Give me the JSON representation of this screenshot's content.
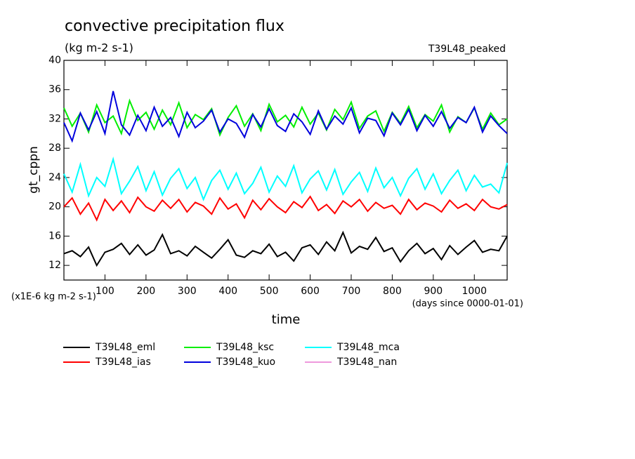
{
  "chart_data": {
    "type": "line",
    "title": "convective precipitation flux",
    "subtitle": "(kg m-2 s-1)",
    "run_label": "T39L48_peaked",
    "y_label": "gt_cppn",
    "y_unit_label": "(x1E-6 kg m-2 s-1)",
    "x_label": "time",
    "x_unit_label": "(days since 0000-01-01)",
    "xlim": [
      0,
      1080
    ],
    "ylim": [
      10,
      40
    ],
    "xticks": [
      100,
      200,
      300,
      400,
      500,
      600,
      700,
      800,
      900,
      1000
    ],
    "yticks": [
      12,
      16,
      20,
      24,
      28,
      32,
      36,
      40
    ],
    "x": [
      0,
      20,
      40,
      60,
      80,
      100,
      120,
      140,
      160,
      180,
      200,
      220,
      240,
      260,
      280,
      300,
      320,
      340,
      360,
      380,
      400,
      420,
      440,
      460,
      480,
      500,
      520,
      540,
      560,
      580,
      600,
      620,
      640,
      660,
      680,
      700,
      720,
      740,
      760,
      780,
      800,
      820,
      840,
      860,
      880,
      900,
      920,
      940,
      960,
      980,
      1000,
      1020,
      1040,
      1060,
      1080
    ],
    "series": [
      {
        "name": "T39L48_eml",
        "color": "#000000",
        "values": [
          13.6,
          14.0,
          13.2,
          14.5,
          12.0,
          13.8,
          14.2,
          15.0,
          13.5,
          14.8,
          13.4,
          14.1,
          16.2,
          13.6,
          14.0,
          13.3,
          14.6,
          13.8,
          13.0,
          14.2,
          15.5,
          13.4,
          13.1,
          14.0,
          13.6,
          14.9,
          13.2,
          13.8,
          12.6,
          14.4,
          14.8,
          13.5,
          15.2,
          14.0,
          16.5,
          13.7,
          14.6,
          14.2,
          15.8,
          13.9,
          14.4,
          12.5,
          14.0,
          15.0,
          13.6,
          14.3,
          12.8,
          14.7,
          13.5,
          14.5,
          15.4,
          13.8,
          14.2,
          14.0,
          16.0
        ]
      },
      {
        "name": "T39L48_ias",
        "color": "#ff0000",
        "values": [
          20.0,
          21.2,
          19.0,
          20.5,
          18.2,
          21.0,
          19.5,
          20.8,
          19.2,
          21.3,
          20.0,
          19.4,
          20.9,
          19.8,
          21.0,
          19.3,
          20.6,
          20.1,
          19.0,
          21.2,
          19.7,
          20.4,
          18.5,
          20.9,
          19.6,
          21.1,
          20.0,
          19.2,
          20.7,
          19.9,
          21.4,
          19.5,
          20.3,
          19.1,
          20.8,
          20.0,
          21.0,
          19.4,
          20.6,
          19.8,
          20.2,
          19.0,
          21.0,
          19.6,
          20.5,
          20.1,
          19.3,
          20.9,
          19.8,
          20.4,
          19.5,
          21.0,
          20.0,
          19.7,
          20.3
        ]
      },
      {
        "name": "T39L48_ksc",
        "color": "#00ee00",
        "values": [
          33.5,
          31.0,
          32.8,
          30.2,
          33.9,
          31.5,
          32.4,
          30.0,
          34.5,
          31.8,
          32.9,
          30.6,
          33.2,
          31.2,
          34.2,
          30.8,
          32.6,
          31.9,
          33.4,
          29.8,
          32.2,
          33.8,
          31.0,
          32.7,
          30.4,
          34.0,
          31.6,
          32.5,
          30.9,
          33.6,
          31.3,
          32.8,
          30.5,
          33.3,
          31.9,
          34.3,
          30.7,
          32.4,
          33.1,
          30.3,
          32.9,
          31.4,
          33.7,
          30.8,
          32.6,
          31.7,
          33.9,
          30.2,
          32.3,
          31.5,
          33.5,
          30.6,
          32.8,
          31.2,
          32.0
        ]
      },
      {
        "name": "T39L48_kuo",
        "color": "#0000dd",
        "values": [
          31.5,
          29.0,
          32.8,
          30.5,
          33.0,
          30.0,
          35.8,
          31.2,
          29.8,
          32.5,
          30.4,
          33.6,
          31.0,
          32.2,
          29.6,
          32.9,
          30.8,
          31.7,
          33.2,
          30.2,
          32.0,
          31.4,
          29.5,
          32.6,
          30.9,
          33.4,
          31.1,
          30.3,
          32.7,
          31.6,
          29.9,
          33.1,
          30.6,
          32.4,
          31.3,
          33.5,
          30.1,
          32.1,
          31.8,
          29.7,
          32.8,
          31.2,
          33.3,
          30.4,
          32.5,
          31.0,
          33.0,
          30.7,
          32.2,
          31.5,
          33.6,
          30.2,
          32.4,
          31.1,
          30.0
        ]
      },
      {
        "name": "T39L48_mca",
        "color": "#00ffff",
        "values": [
          24.5,
          22.0,
          25.8,
          21.5,
          24.0,
          22.8,
          26.5,
          21.8,
          23.5,
          25.5,
          22.2,
          24.8,
          21.6,
          23.9,
          25.2,
          22.5,
          24.0,
          21.0,
          23.6,
          25.0,
          22.4,
          24.6,
          21.8,
          23.2,
          25.4,
          22.0,
          24.2,
          22.8,
          25.6,
          21.9,
          23.8,
          24.9,
          22.3,
          25.1,
          21.7,
          23.4,
          24.7,
          22.1,
          25.3,
          22.6,
          24.0,
          21.5,
          23.9,
          25.2,
          22.4,
          24.5,
          21.8,
          23.6,
          25.0,
          22.2,
          24.3,
          22.7,
          23.1,
          21.9,
          26.0
        ]
      },
      {
        "name": "T39L48_nan",
        "color": "#ee99dd",
        "values": [
          null,
          null,
          null,
          null,
          null,
          null,
          null,
          null,
          null,
          null,
          null,
          null,
          null,
          null,
          null,
          null,
          null,
          null,
          null,
          null,
          null,
          null,
          null,
          null,
          null,
          null,
          null,
          null,
          null,
          null,
          null,
          null,
          null,
          null,
          null,
          null,
          null,
          null,
          null,
          null,
          null,
          null,
          null,
          null,
          null,
          null,
          null,
          null,
          null,
          null,
          null,
          null,
          null,
          null,
          null
        ]
      }
    ]
  }
}
